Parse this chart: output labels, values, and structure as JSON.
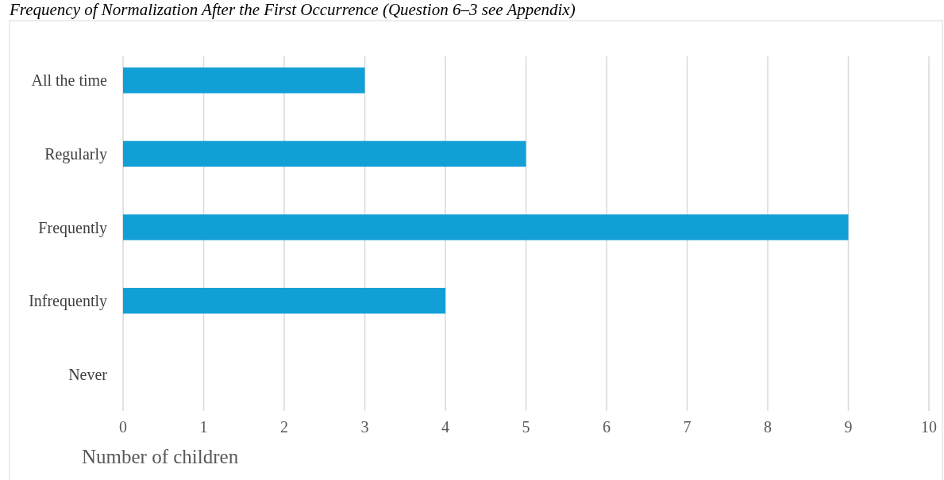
{
  "chart_data": {
    "type": "bar",
    "orientation": "horizontal",
    "title": "Frequency of Normalization After the First Occurrence (Question 6–3 see Appendix)",
    "xlabel": "Number of children",
    "categories": [
      "All the time",
      "Regularly",
      "Frequently",
      "Infrequently",
      "Never"
    ],
    "values": [
      3,
      5,
      9,
      4,
      0
    ],
    "color": "#119fd6",
    "xlim": [
      0,
      10
    ],
    "xticks": [
      0,
      1,
      2,
      3,
      4,
      5,
      6,
      7,
      8,
      9,
      10
    ],
    "grid": "x"
  }
}
